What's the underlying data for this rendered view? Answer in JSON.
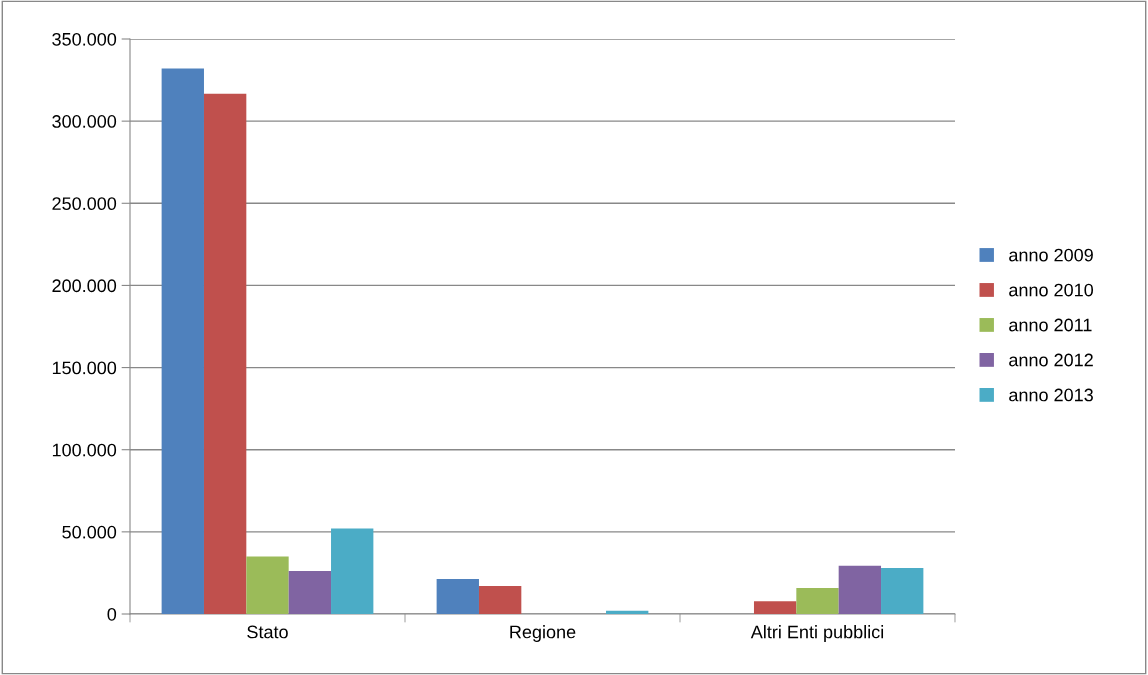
{
  "chart_data": {
    "type": "bar",
    "categories": [
      "Stato",
      "Regione",
      "Altri Enti pubblici"
    ],
    "series": [
      {
        "name": "anno 2009",
        "color": "#4f81bd",
        "values": [
          332000,
          21300,
          0
        ]
      },
      {
        "name": "anno 2010",
        "color": "#c0504d",
        "values": [
          316700,
          17000,
          7700
        ]
      },
      {
        "name": "anno 2011",
        "color": "#9bbb59",
        "values": [
          35000,
          null,
          15800
        ]
      },
      {
        "name": "anno 2012",
        "color": "#8064a2",
        "values": [
          26200,
          null,
          29400
        ]
      },
      {
        "name": "anno 2013",
        "color": "#4bacc6",
        "values": [
          52000,
          2000,
          28000
        ]
      }
    ],
    "ylim": [
      0,
      350000
    ],
    "yticks": [
      {
        "value": 0,
        "label": "0"
      },
      {
        "value": 50000,
        "label": "50.000"
      },
      {
        "value": 100000,
        "label": "100.000"
      },
      {
        "value": 150000,
        "label": "150.000"
      },
      {
        "value": 200000,
        "label": "200.000"
      },
      {
        "value": 250000,
        "label": "250.000"
      },
      {
        "value": 300000,
        "label": "300.000"
      },
      {
        "value": 350000,
        "label": "350.000"
      }
    ],
    "grid": "y",
    "legend": "right"
  }
}
